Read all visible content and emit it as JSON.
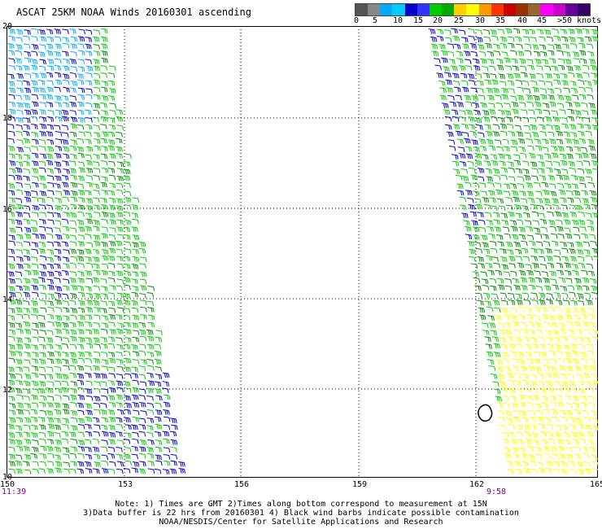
{
  "header": {
    "title": "ASCAT 25KM NOAA Winds 20160301 ascending"
  },
  "speed_scale": {
    "colors": [
      "#555555",
      "#888888",
      "#00aaff",
      "#00ccff",
      "#0000cc",
      "#3333ff",
      "#00cc00",
      "#00aa00",
      "#ffcc00",
      "#ffff00",
      "#ff9900",
      "#ff3300",
      "#cc0000",
      "#993300",
      "#996633",
      "#ff00ff",
      "#cc00cc",
      "#660099",
      "#330066"
    ],
    "labels": [
      "0",
      "5",
      "10",
      "15",
      "20",
      "25",
      "30",
      "35",
      "40",
      "45",
      ">50 knots"
    ]
  },
  "axes": {
    "lon_labels": [
      "150",
      "153",
      "156",
      "159",
      "162",
      "165"
    ],
    "lat_labels": [
      "20",
      "18",
      "16",
      "14",
      "12",
      "10"
    ]
  },
  "times": {
    "left": "11:39",
    "right": "9:58"
  },
  "notes": {
    "line1": "Note: 1) Times are GMT 2)Times along bottom correspond to measurement at 15N",
    "line2": "3)Data buffer is 22 hrs from 20160301 4) Black wind barbs indicate possible contamination",
    "line3": "NOAA/NESDIS/Center for Satellite Applications and Research"
  },
  "legend_colors": {
    "blue": "#0000cc",
    "light_blue": "#00aaff",
    "green": "#00cc00",
    "dark_green": "#008800",
    "yellow": "#ffff00",
    "black": "#000000"
  }
}
